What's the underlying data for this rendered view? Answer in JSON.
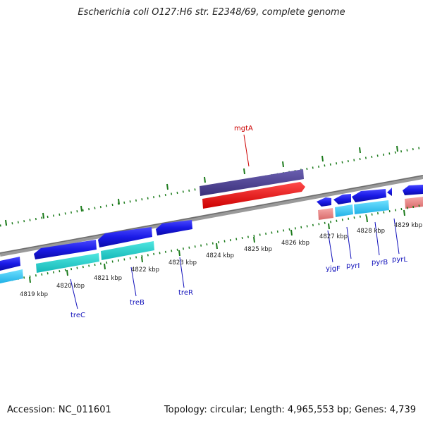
{
  "title": "Escherichia coli O127:H6 str. E2348/69, complete genome",
  "footer": {
    "accession": "Accession: NC_011601",
    "summary": "Topology: circular; Length: 4,965,553 bp; Genes: 4,739"
  },
  "ticks": [
    "4819 kbp",
    "4820 kbp",
    "4821 kbp",
    "4822 kbp",
    "4823 kbp",
    "4824 kbp",
    "4825 kbp",
    "4826 kbp",
    "4827 kbp",
    "4828 kbp",
    "4829 kbp"
  ],
  "gene_labels": {
    "mgtA": "mgtA",
    "treC": "treC",
    "treB": "treB",
    "treR": "treR",
    "yjgF": "yjgF",
    "pyrI": "pyrI",
    "pyrB": "pyrB",
    "pyrL": "pyrL"
  },
  "colors": {
    "backbone": "#808080",
    "gene_forward": "#1a1ae6",
    "cds": "#33ccee",
    "cds_teal": "#22cccc",
    "rna": "#e88888",
    "mgtA_outer": "#4b3f8f",
    "mgtA_inner": "#ee1111",
    "tick": "#1a7a1a",
    "label_red": "#cc0000",
    "label_blue": "#1111bb"
  }
}
